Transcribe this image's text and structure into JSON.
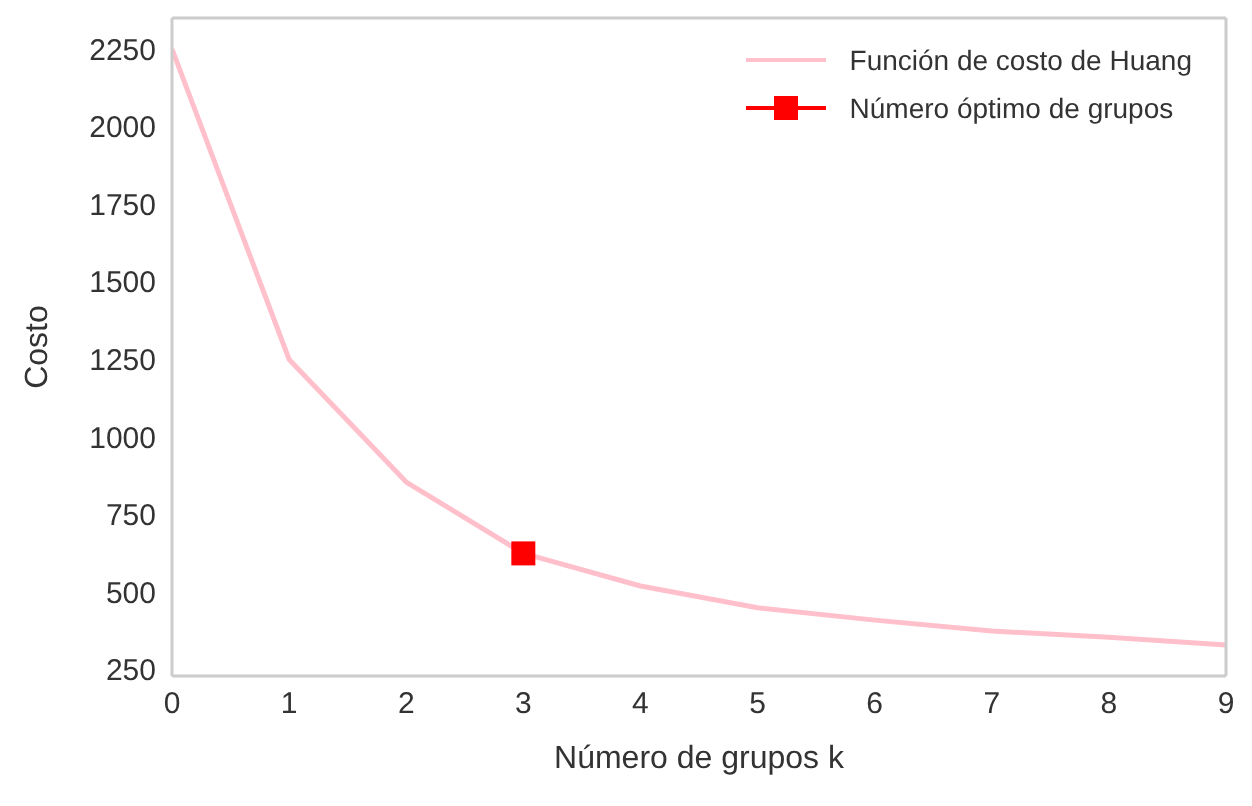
{
  "chart_data": {
    "type": "line",
    "xlabel": "Número de grupos k",
    "ylabel": "Costo",
    "x": [
      0,
      1,
      2,
      3,
      4,
      5,
      6,
      7,
      8,
      9
    ],
    "series": [
      {
        "name": "Función de costo de Huang",
        "color": "#ffc0cb",
        "values": [
          2250,
          1250,
          855,
          625,
          520,
          450,
          410,
          375,
          355,
          330
        ],
        "marker": "none"
      },
      {
        "name": "Número óptimo de grupos",
        "color": "#ff0000",
        "x": [
          3
        ],
        "values": [
          625
        ],
        "marker": "square"
      }
    ],
    "xlim": [
      0,
      9
    ],
    "xticks": [
      0,
      1,
      2,
      3,
      4,
      5,
      6,
      7,
      8,
      9
    ],
    "ylim": [
      230,
      2350
    ],
    "yticks": [
      250,
      500,
      750,
      1000,
      1250,
      1500,
      1750,
      2000,
      2250
    ],
    "legend": "top right"
  }
}
